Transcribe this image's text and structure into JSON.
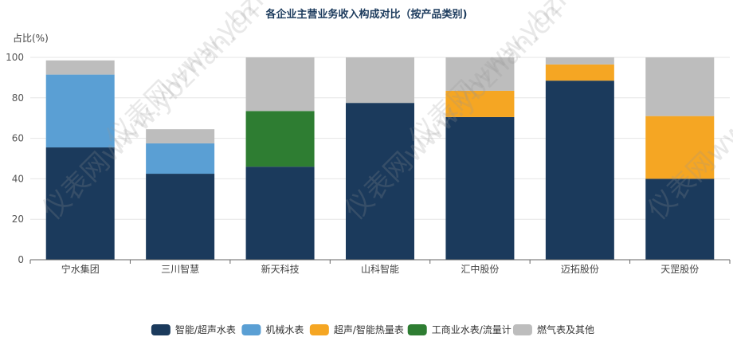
{
  "watermark": "仪表网www.ybzhan.cn",
  "chart_data": {
    "type": "bar",
    "stacked": true,
    "title": "各企业主营业务收入构成对比（按产品类别)",
    "ylabel": "占比(%)",
    "ylim": [
      0,
      100
    ],
    "yticks": [
      0,
      20,
      40,
      60,
      80,
      100
    ],
    "grid": true,
    "legend_position": "bottom-center",
    "categories": [
      "宁水集团",
      "三川智慧",
      "新天科技",
      "山科智能",
      "汇中股份",
      "迈拓股份",
      "天罡股份"
    ],
    "series": [
      {
        "name": "智能/超声水表",
        "color": "#1b3a5c",
        "values": [
          55.5,
          42.5,
          46,
          77.5,
          70.5,
          88.5,
          40
        ]
      },
      {
        "name": "机械水表",
        "color": "#5a9fd4",
        "values": [
          36,
          15,
          0,
          0,
          0,
          0,
          0
        ]
      },
      {
        "name": "超声/智能热量表",
        "color": "#f5a623",
        "values": [
          0,
          0,
          0,
          0,
          13,
          8,
          31
        ]
      },
      {
        "name": "工商业水表/流量计",
        "color": "#2e7d32",
        "values": [
          0,
          0,
          27.5,
          0,
          0,
          0,
          0
        ]
      },
      {
        "name": "燃气表及其他",
        "color": "#bdbdbd",
        "values": [
          7,
          7,
          26.5,
          22.5,
          16.5,
          3.5,
          29
        ]
      }
    ]
  }
}
